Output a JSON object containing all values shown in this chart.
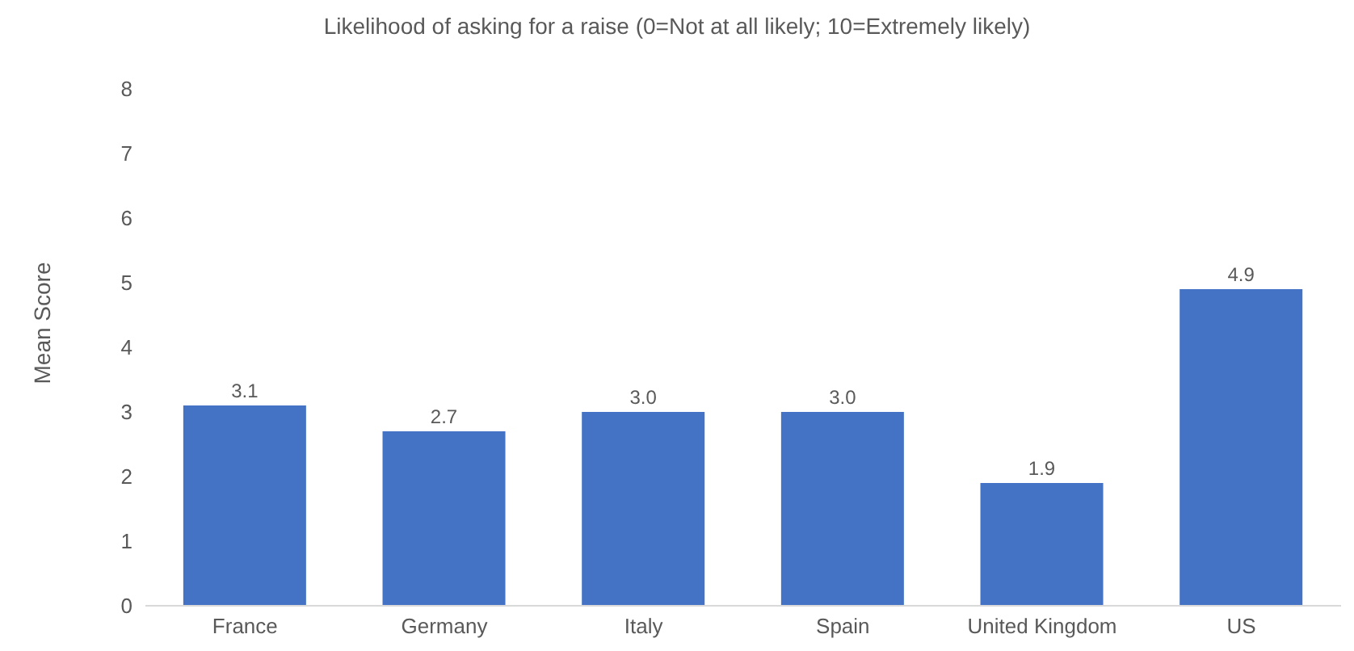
{
  "chart_data": {
    "type": "bar",
    "title": "Likelihood of asking for a raise (0=Not at all likely; 10=Extremely likely)",
    "ylabel": "Mean Score",
    "categories": [
      "France",
      "Germany",
      "Italy",
      "Spain",
      "United Kingdom",
      "US"
    ],
    "values": [
      3.1,
      2.7,
      3.0,
      3.0,
      1.9,
      4.9
    ],
    "value_labels": [
      "3.1",
      "2.7",
      "3.0",
      "3.0",
      "1.9",
      "4.9"
    ],
    "color": "#4472c4",
    "ylim": [
      0,
      8
    ],
    "yticks": [
      0,
      1,
      2,
      3,
      4,
      5,
      6,
      7,
      8
    ],
    "grid": false,
    "legend": false
  }
}
